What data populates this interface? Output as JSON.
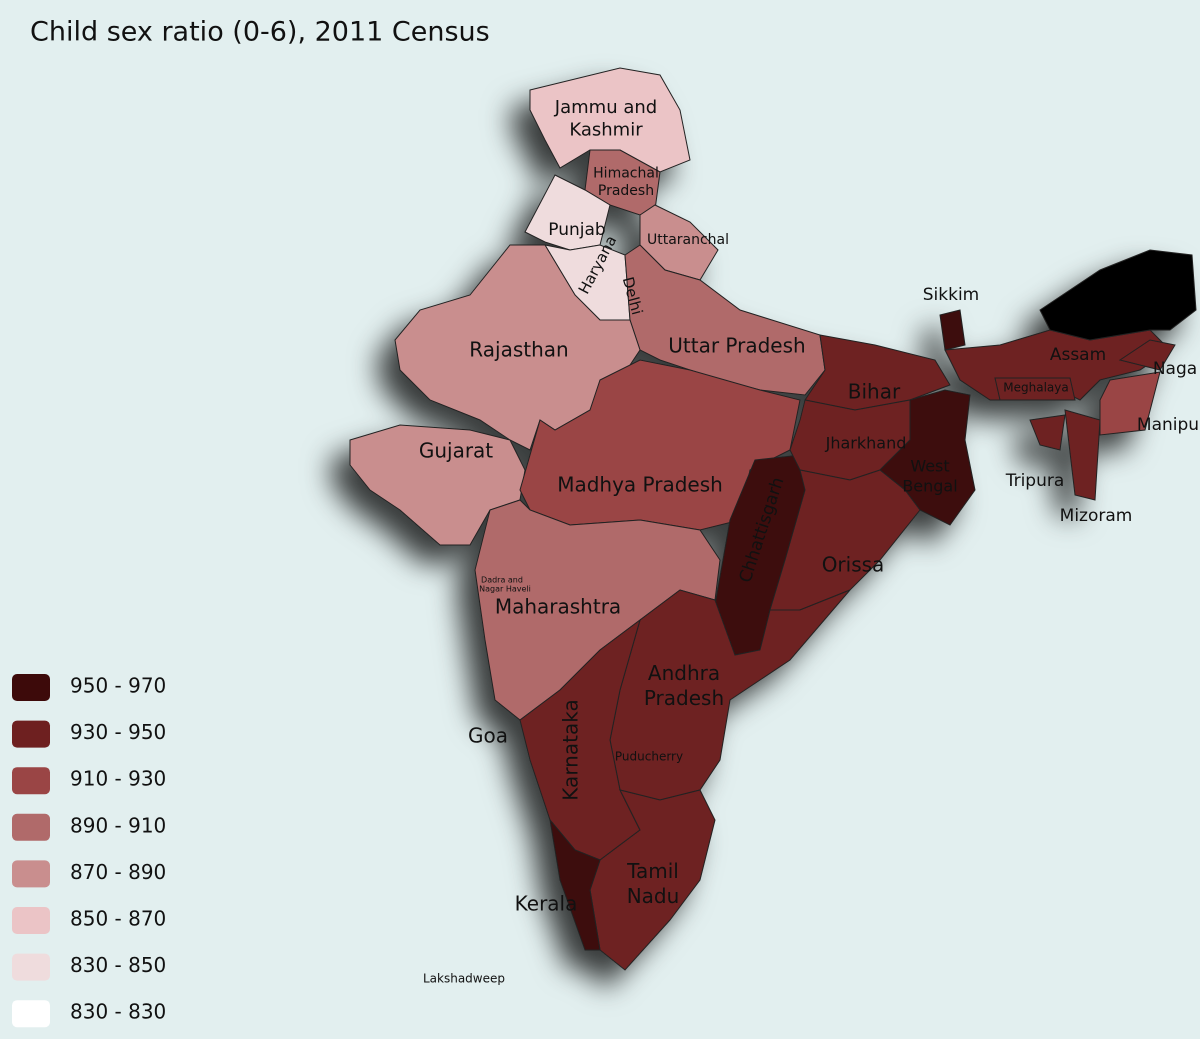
{
  "title": "Child sex ratio (0-6), 2011 Census",
  "regions": [
    {
      "name": [
        "Jammu and",
        "Kashmir"
      ],
      "color": "#ebc4c6"
    },
    {
      "name": [
        "Himachal",
        "Pradesh"
      ],
      "color": "#b06a6a"
    },
    {
      "name": [
        "Punjab"
      ],
      "color": "#efdcdd"
    },
    {
      "name": [
        "Haryana"
      ],
      "color": "#efdcdd"
    },
    {
      "name": [
        "Uttaranchal"
      ],
      "color": "#c98e8e"
    },
    {
      "name": [
        "Uttar Pradesh"
      ],
      "color": "#b06a6a"
    },
    {
      "name": [
        "Rajasthan"
      ],
      "color": "#c98e8e"
    },
    {
      "name": [
        "Gujarat"
      ],
      "color": "#c98e8e"
    },
    {
      "name": [
        "Madhya Pradesh"
      ],
      "color": "#9a4545"
    },
    {
      "name": [
        "Maharashtra"
      ],
      "color": "#b06a6a"
    },
    {
      "name": [
        "Chhattisgarh"
      ],
      "color": "#3d0a0a"
    },
    {
      "name": [
        "Bihar"
      ],
      "color": "#6e2020"
    },
    {
      "name": [
        "Jharkhand"
      ],
      "color": "#6e2020"
    },
    {
      "name": [
        "West",
        "Bengal"
      ],
      "color": "#3d0a0a"
    },
    {
      "name": [
        "Orissa"
      ],
      "color": "#6e2020"
    },
    {
      "name": [
        "Andhra",
        "Pradesh"
      ],
      "color": "#6e2020"
    },
    {
      "name": [
        "Karnataka"
      ],
      "color": "#6e2020"
    },
    {
      "name": [
        "Tamil",
        "Nadu"
      ],
      "color": "#6e2020"
    },
    {
      "name": [
        "Kerala"
      ],
      "color": "#3d0a0a"
    },
    {
      "name": [
        "Sikkim"
      ],
      "color": "#3d0a0a"
    },
    {
      "name": [
        "Assam"
      ],
      "color": "#6e2020"
    },
    {
      "name": [
        "Meghalaya"
      ],
      "color": "#6e2020"
    },
    {
      "name": [
        "Naga"
      ],
      "color": "#6e2020"
    },
    {
      "name": [
        "Manipu"
      ],
      "color": "#9a4545"
    },
    {
      "name": [
        "Tripura"
      ],
      "color": "#6e2020"
    },
    {
      "name": [
        "Mizoram"
      ],
      "color": "#6e2020"
    }
  ],
  "other_regions": [
    {
      "color": "#000000"
    }
  ],
  "labels": [
    "Delhi",
    "Goa",
    "Dadra and",
    "Nagar Haveli",
    "Puducherry",
    "Lakshadweep"
  ],
  "legend": [
    {
      "label": "950 - 970",
      "color": "#3d0a0a"
    },
    {
      "label": "930 - 950",
      "color": "#6e2020"
    },
    {
      "label": "910 - 930",
      "color": "#9a4545"
    },
    {
      "label": "890 - 910",
      "color": "#b06a6a"
    },
    {
      "label": "870 - 890",
      "color": "#c98e8e"
    },
    {
      "label": "850 - 870",
      "color": "#ebc4c6"
    },
    {
      "label": "830 - 850",
      "color": "#efdcdd"
    },
    {
      "label": "830 - 830",
      "color": "#ffffff"
    }
  ]
}
